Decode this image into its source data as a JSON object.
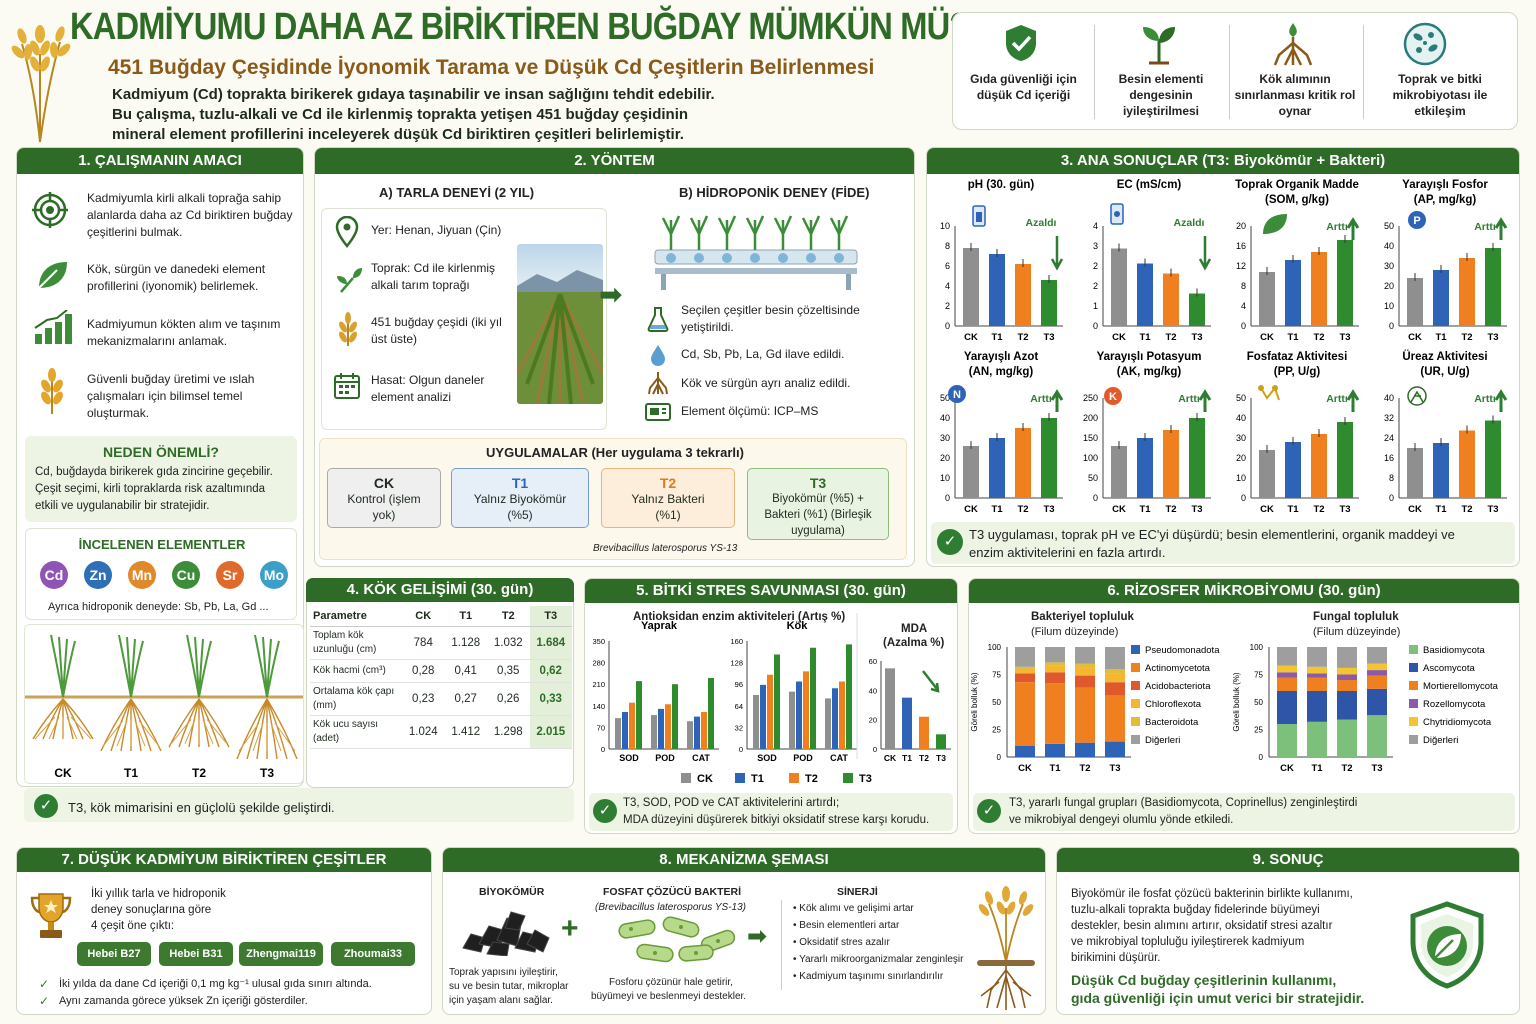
{
  "header": {
    "title": "KADMİYUMU DAHA AZ BİRİKTİREN BUĞDAY MÜMKÜN MÜ?",
    "subtitle": "451 Buğday Çeşidinde İyonomik Tarama ve Düşük Cd Çeşitlerin Belirlenmesi",
    "intro1": "Kadmiyum (Cd) toprakta birikerek gıdaya taşınabilir ve insan sağlığını tehdit edebilir.",
    "intro2": "Bu çalışma, tuzlu-alkali ve Cd ile kirlenmiş toprakta yetişen 451 buğday çeşidinin",
    "intro3": "mineral element profillerini inceleyerek düşük Cd biriktiren çeşitleri belirlemiştir."
  },
  "highlights": [
    {
      "label": "Gıda güvenliği için düşük Cd içeriği",
      "icon": "shield-check-icon"
    },
    {
      "label": "Besin elementi dengesinin iyileştirilmesi",
      "icon": "seedling-icon"
    },
    {
      "label": "Kök alımının sınırlanması kritik rol oynar",
      "icon": "root-icon"
    },
    {
      "label": "Toprak ve bitki mikrobiyotası ile etkileşim",
      "icon": "microbe-icon"
    }
  ],
  "aim": {
    "title": "1. ÇALIŞMANIN AMACI",
    "items": [
      "Kadmiyumla kirli alkali toprağa sahip alanlarda daha az Cd biriktiren buğday çeşitlerini bulmak.",
      "Kök, sürgün ve danedeki element profillerini (iyonomik) belirlemek.",
      "Kadmiyumun kökten alım ve taşınım mekanizmalarını anlamak.",
      "Güvenli buğday üretimi ve ıslah çalışmaları için bilimsel temel oluşturmak."
    ],
    "why_title": "NEDEN ÖNEMLİ?",
    "why_text": "Cd, buğdayda birikerek gıda zincirine geçebilir. Çeşit seçimi, kirli topraklarda risk azaltımında etkili ve uygulanabilir bir stratejidir.",
    "elements_title": "İNCELENEN ELEMENTLER",
    "elements": [
      {
        "sym": "Cd",
        "color": "#8e55b5"
      },
      {
        "sym": "Zn",
        "color": "#2f6fb5"
      },
      {
        "sym": "Mn",
        "color": "#e0892b"
      },
      {
        "sym": "Cu",
        "color": "#3d8c3a"
      },
      {
        "sym": "Sr",
        "color": "#e06a2b"
      },
      {
        "sym": "Mo",
        "color": "#3aa0c9"
      }
    ],
    "elements_note": "Ayrıca hidroponik deneyde: Sb, Pb, La, Gd ..."
  },
  "method": {
    "title": "2. YÖNTEM",
    "field_title": "A) TARLA DENEYİ (2 YIL)",
    "field_items": [
      "Yer:  Henan, Jiyuan (Çin)",
      "Toprak: Cd ile kirlenmiş alkali tarım toprağı",
      "451 buğday çeşidi (iki yıl üst üste)",
      "Hasat: Olgun daneler element analizi"
    ],
    "hydro_title": "B) HİDROPONİK DENEY (FİDE)",
    "hydro_items": [
      "Seçilen çeşitler besin çözeltisinde yetiştirildi.",
      "Cd, Sb, Pb, La, Gd ilave edildi.",
      "Kök ve sürgün ayrı analiz edildi.",
      "Element ölçümü:  ICP–MS"
    ],
    "treat_title": "UYGULAMALAR  (Her uygulama 3 tekrarlı)",
    "treatments": [
      {
        "code": "CK",
        "desc": "Kontrol (işlem yok)"
      },
      {
        "code": "T1",
        "desc": "Yalnız Biyokömür (%5)"
      },
      {
        "code": "T2",
        "desc": "Yalnız Bakteri (%1)"
      },
      {
        "code": "T3",
        "desc": "Biyokömür (%5) + Bakteri (%1) (Birleşik uygulama)"
      }
    ],
    "strain": "Brevibacillus laterosporus YS-13"
  },
  "results": {
    "title": "3. ANA SONUÇLAR (T3: Biyokömür + Bakteri)",
    "summary": "T3 uygulaması, toprak pH ve EC'yi düşürdü; besin elementlerini, organik maddeyi ve enzim aktivitelerini en fazla artırdı."
  },
  "chart_data": [
    {
      "type": "bar",
      "title": "pH (30. gün)",
      "categories": [
        "CK",
        "T1",
        "T2",
        "T3"
      ],
      "values": [
        7.8,
        7.2,
        6.2,
        4.6
      ],
      "ylim": [
        0,
        10
      ],
      "annotation": "Azaldı"
    },
    {
      "type": "bar",
      "title": "EC (mS/cm)",
      "categories": [
        "CK",
        "T1",
        "T2",
        "T3"
      ],
      "values": [
        3.1,
        2.5,
        2.1,
        1.3
      ],
      "ylim": [
        0,
        4
      ],
      "annotation": "Azaldı"
    },
    {
      "type": "bar",
      "title": "Toprak Organik Madde (SOM, g/kg)",
      "categories": [
        "CK",
        "T1",
        "T2",
        "T3"
      ],
      "values": [
        10.8,
        13.2,
        14.8,
        17.2
      ],
      "ylim": [
        0,
        20
      ],
      "annotation": "Arttı"
    },
    {
      "type": "bar",
      "title": "Yarayışlı Fosfor (AP, mg/kg)",
      "categories": [
        "CK",
        "T1",
        "T2",
        "T3"
      ],
      "values": [
        24,
        28,
        34,
        39
      ],
      "ylim": [
        0,
        50
      ],
      "annotation": "Arttı"
    },
    {
      "type": "bar",
      "title": "Yarayışlı Azot (AN, mg/kg)",
      "categories": [
        "CK",
        "T1",
        "T2",
        "T3"
      ],
      "values": [
        26,
        30,
        35,
        40
      ],
      "ylim": [
        0,
        50
      ],
      "annotation": "Arttı"
    },
    {
      "type": "bar",
      "title": "Yarayışlı Potasyum (AK, mg/kg)",
      "categories": [
        "CK",
        "T1",
        "T2",
        "T3"
      ],
      "values": [
        130,
        150,
        170,
        200
      ],
      "ylim": [
        0,
        250
      ],
      "annotation": "Arttı"
    },
    {
      "type": "bar",
      "title": "Fosfataz Aktivitesi (PP, U/g)",
      "categories": [
        "CK",
        "T1",
        "T2",
        "T3"
      ],
      "values": [
        24,
        28,
        32,
        38
      ],
      "ylim": [
        0,
        50
      ],
      "annotation": "Arttı"
    },
    {
      "type": "bar",
      "title": "Üreaz Aktivitesi (UR, U/g)",
      "categories": [
        "CK",
        "T1",
        "T2",
        "T3"
      ],
      "values": [
        20,
        22,
        27,
        31
      ],
      "ylim": [
        0,
        40
      ],
      "annotation": "Arttı"
    },
    {
      "type": "bar",
      "title": "Yaprak",
      "categories": [
        "SOD",
        "POD",
        "CAT"
      ],
      "series": [
        {
          "name": "CK",
          "values": [
            100,
            110,
            90
          ]
        },
        {
          "name": "T1",
          "values": [
            120,
            130,
            105
          ]
        },
        {
          "name": "T2",
          "values": [
            150,
            145,
            120
          ]
        },
        {
          "name": "T3",
          "values": [
            220,
            210,
            230
          ]
        }
      ],
      "ylim": [
        0,
        350
      ]
    },
    {
      "type": "bar",
      "title": "Kök",
      "categories": [
        "SOD",
        "POD",
        "CAT"
      ],
      "series": [
        {
          "name": "CK",
          "values": [
            80,
            85,
            75
          ]
        },
        {
          "name": "T1",
          "values": [
            95,
            100,
            90
          ]
        },
        {
          "name": "T2",
          "values": [
            110,
            115,
            100
          ]
        },
        {
          "name": "T3",
          "values": [
            140,
            150,
            155
          ]
        }
      ],
      "ylim": [
        0,
        160
      ]
    },
    {
      "type": "bar",
      "title": "MDA (Azalma %)",
      "categories": [
        "CK",
        "T1",
        "T2",
        "T3"
      ],
      "values": [
        55,
        35,
        22,
        10
      ],
      "ylim": [
        0,
        60
      ]
    }
  ],
  "root": {
    "title": "4. KÖK GELİŞİMİ (30. gün)",
    "labels": [
      "CK",
      "T1",
      "T2",
      "T3"
    ],
    "table": {
      "headers": [
        "Parametre",
        "CK",
        "T1",
        "T2",
        "T3"
      ],
      "rows": [
        [
          "Toplam kök uzunluğu (cm)",
          "784",
          "1.128",
          "1.032",
          "1.684"
        ],
        [
          "Kök hacmi (cm³)",
          "0,28",
          "0,41",
          "0,35",
          "0,62"
        ],
        [
          "Ortalama kök çapı (mm)",
          "0,23",
          "0,27",
          "0,26",
          "0,33"
        ],
        [
          "Kök ucu sayısı (adet)",
          "1.024",
          "1.412",
          "1.298",
          "2.015"
        ]
      ]
    },
    "summary": "T3, kök mimarisini en güçlolü şekilde geliştirdi."
  },
  "stress": {
    "title": "5. BİTKİ STRES SAVUNMASI (30. gün)",
    "sub": "Antioksidan enzim aktiviteleri (Artış %)",
    "leaf": "Yaprak",
    "root": "Kök",
    "mda1": "MDA",
    "mda2": "(Azalma %)",
    "legend": [
      "CK",
      "T1",
      "T2",
      "T3"
    ],
    "summary1": "T3, SOD, POD ve CAT aktivitelerini artırdı;",
    "summary2": "MDA düzeyini düşürerek bitkiyi oksidatif strese karşı korudu."
  },
  "micro": {
    "title": "6. RİZOSFER MİKROBİYOMU (30. gün)",
    "bact_title": "Bakteriyel topluluk",
    "bact_sub": "(Filum düzeyinde)",
    "fung_title": "Fungal topluluk",
    "fung_sub": "(Filum düzeyinde)",
    "ylabel": "Göreli bolluk (%)",
    "bact_legend": [
      "Pseudomonadota",
      "Actinomycetota",
      "Acidobacteriota",
      "Chloroflexota",
      "Bacteroidota",
      "Diğerleri"
    ],
    "fung_legend": [
      "Basidiomycota",
      "Ascomycota",
      "Mortierellomycota",
      "Rozellomycota",
      "Chytridiomycota",
      "Diğerleri"
    ],
    "summary1": "T3, yararlı fungal grupları (Basidiomycota, Coprinellus) zenginleştirdi",
    "summary2": "ve mikrobiyal dengeyi olumlu yönde etkiledi."
  },
  "lowcd": {
    "title": "7. DÜŞÜK KADMİYUM BİRİKTİREN ÇEŞİTLER",
    "text1": "İki yıllık tarla ve hidroponik",
    "text2": "deney sonuçlarına göre",
    "text3": "4 çeşit öne çıktı:",
    "varieties": [
      "Hebei B27",
      "Hebei B31",
      "Zhengmai119",
      "Zhoumai33"
    ],
    "note1": "İki yılda da dane Cd içeriği 0,1 mg kg⁻¹ ulusal gıda sınırı altında.",
    "note2": "Aynı zamanda görece yüksek Zn içeriği gösterdiler."
  },
  "mech": {
    "title": "8. MEKANİZMA ŞEMASI",
    "biochar": "BİYOKÖMÜR",
    "biochar_desc": [
      "Toprak yapısını iyileştirir,",
      "su ve besin tutar, mikroplar",
      "için yaşam alanı sağlar."
    ],
    "bacteria": "FOSFAT ÇÖZÜCÜ BAKTERİ",
    "strain": "(Brevibacillus laterosporus YS-13)",
    "bacteria_desc": [
      "Fosforu çözünür hale getirir,",
      "büyümeyi ve beslenmeyi destekler."
    ],
    "synergy": "SİNERJİ",
    "synergy_items": [
      "Kök alımı ve gelişimi artar",
      "Besin elementleri artar",
      "Oksidatif stres azalır",
      "Yararlı mikroorganizmalar zenginleşir",
      "Kadmiyum taşınımı sınırlandırılır"
    ]
  },
  "conclusion": {
    "title": "9. SONUÇ",
    "lines": [
      "Biyokömür ile fosfat çözücü bakterinin birlikte kullanımı,",
      "tuzlu-alkali toprakta buğday fidelerinde büyümeyi",
      "destekler, besin alımını artırır, oksidatif stresi azaltır",
      "ve mikrobiyal topluluğu iyileştirerek kadmiyum",
      "birikimini düşürür."
    ],
    "bold1": "Düşük Cd buğday çeşitlerinin kullanımı,",
    "bold2": "gıda güvenliği için umut verici bir stratejidir."
  },
  "colors": {
    "CK": "#8f8f8f",
    "T1": "#2f63b8",
    "T2": "#f07f1f",
    "T3": "#2e8b2e",
    "primary": "#2e6b26"
  }
}
